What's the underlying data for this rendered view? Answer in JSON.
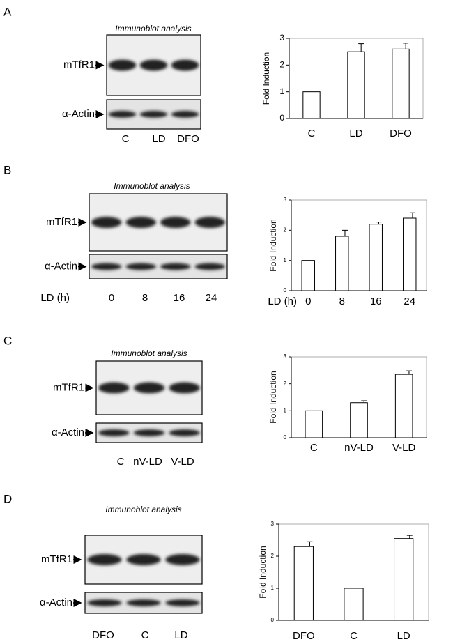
{
  "panels": [
    {
      "letter": "A",
      "blot": {
        "title": "Immunoblot analysis",
        "rows": [
          "mTfR1",
          "α-Actin"
        ],
        "lanes": [
          "C",
          "LD",
          "DFO"
        ]
      }
    },
    {
      "letter": "B",
      "blot": {
        "title": "Immunoblot analysis",
        "rows": [
          "mTfR1",
          "α-Actin"
        ],
        "lanes": [
          "0",
          "8",
          "16",
          "24"
        ],
        "lane_label": "LD (h)"
      }
    },
    {
      "letter": "C",
      "blot": {
        "title": "Immunoblot analysis",
        "rows": [
          "mTfR1",
          "α-Actin"
        ],
        "lanes": [
          "C",
          "nV-LD",
          "V-LD"
        ]
      }
    },
    {
      "letter": "D",
      "blot": {
        "title": "Immunoblot analysis",
        "rows": [
          "mTfR1",
          "α-Actin"
        ],
        "lanes": [
          "DFO",
          "C",
          "LD"
        ]
      }
    }
  ],
  "chart_data": [
    {
      "type": "bar",
      "categories": [
        "C",
        "LD",
        "DFO"
      ],
      "values": [
        1,
        2.5,
        2.6
      ],
      "errors": [
        null,
        0.3,
        0.22
      ],
      "ylim": [
        0,
        3
      ],
      "yticks": [
        0,
        1,
        2,
        3
      ],
      "ylabel": "Fold Induction"
    },
    {
      "type": "bar",
      "categories": [
        "0",
        "8",
        "16",
        "24"
      ],
      "values": [
        1,
        1.8,
        2.2,
        2.4
      ],
      "errors": [
        null,
        0.2,
        0.07,
        0.18
      ],
      "ylim": [
        0,
        3
      ],
      "yticks": [
        0,
        1,
        2,
        3
      ],
      "ylabel": "Fold Induction",
      "xlabel": "LD (h)"
    },
    {
      "type": "bar",
      "categories": [
        "C",
        "nV-LD",
        "V-LD"
      ],
      "values": [
        1,
        1.3,
        2.35
      ],
      "errors": [
        null,
        0.07,
        0.13
      ],
      "ylim": [
        0,
        3
      ],
      "yticks": [
        0,
        1,
        2,
        3
      ],
      "ylabel": "Fold Induction"
    },
    {
      "type": "bar",
      "categories": [
        "DFO",
        "C",
        "LD"
      ],
      "values": [
        2.3,
        1,
        2.55
      ],
      "errors": [
        0.15,
        null,
        0.1
      ],
      "ylim": [
        0,
        3
      ],
      "yticks": [
        0,
        1,
        2,
        3
      ],
      "ylabel": "Fold Induction"
    }
  ]
}
